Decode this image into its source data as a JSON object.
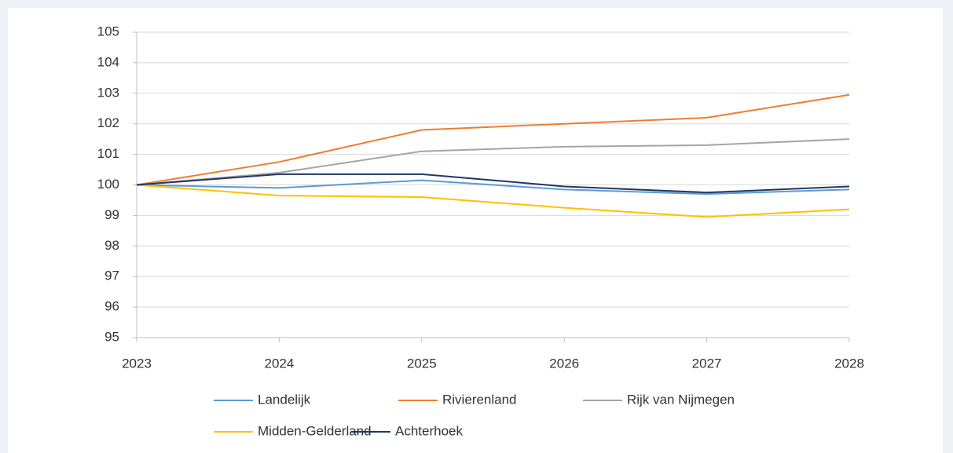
{
  "chart_data": {
    "type": "line",
    "x": [
      2023,
      2024,
      2025,
      2026,
      2027,
      2028
    ],
    "xlim": [
      2023,
      2028
    ],
    "xticks": [
      2023,
      2024,
      2025,
      2026,
      2027,
      2028
    ],
    "ylim": [
      95,
      105
    ],
    "yticks": [
      95,
      96,
      97,
      98,
      99,
      100,
      101,
      102,
      103,
      104,
      105
    ],
    "grid": true,
    "legend": "bottom",
    "series": [
      {
        "name": "Landelijk",
        "color": "#5b9bd5",
        "values": [
          100,
          99.9,
          100.15,
          99.85,
          99.7,
          99.85
        ]
      },
      {
        "name": "Rivierenland",
        "color": "#ed7d31",
        "values": [
          100,
          100.75,
          101.8,
          102.0,
          102.2,
          102.95
        ]
      },
      {
        "name": "Rijk van Nijmegen",
        "color": "#a5a5a5",
        "values": [
          100,
          100.4,
          101.1,
          101.25,
          101.3,
          101.5
        ]
      },
      {
        "name": "Midden-Gelderland",
        "color": "#ffc000",
        "values": [
          100,
          99.65,
          99.6,
          99.25,
          98.95,
          99.2
        ]
      },
      {
        "name": "Achterhoek",
        "color": "#1f3864",
        "values": [
          100,
          100.35,
          100.35,
          99.95,
          99.75,
          99.95
        ]
      }
    ]
  }
}
